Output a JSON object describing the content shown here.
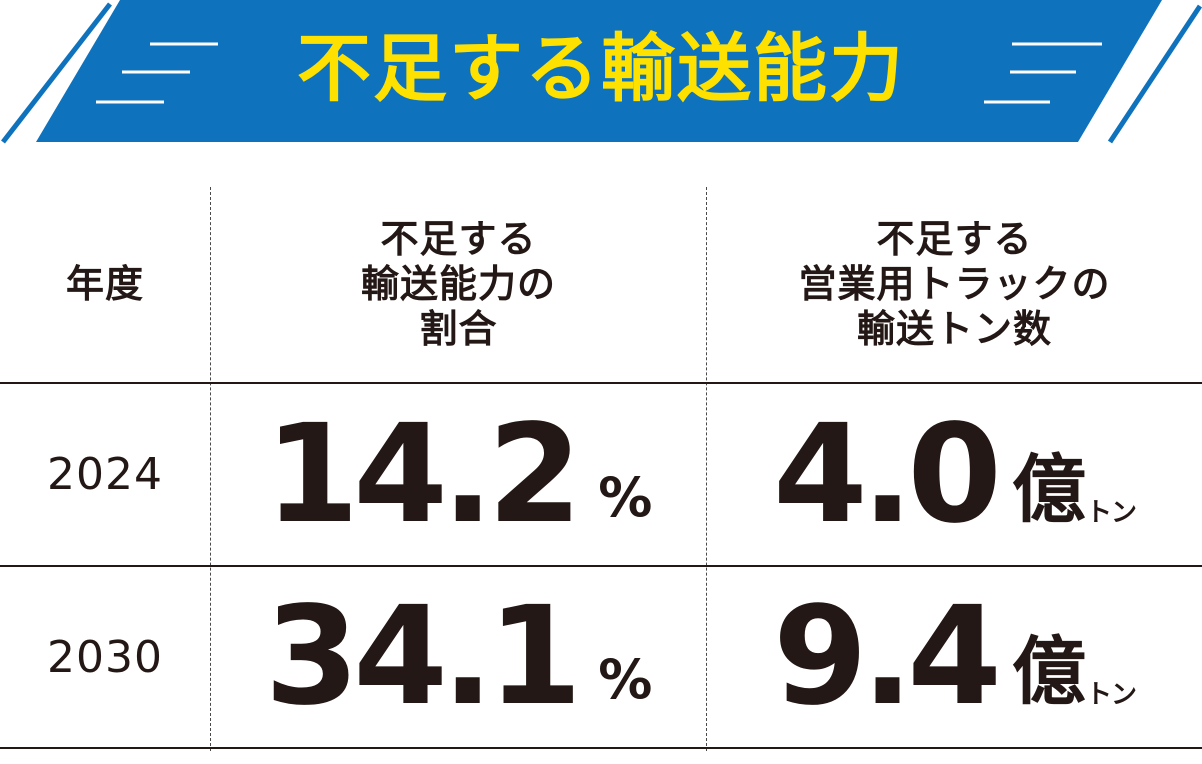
{
  "colors": {
    "banner_blue": "#0f72bd",
    "banner_title_yellow": "#ffe100",
    "text_dark": "#231815"
  },
  "banner": {
    "title": "不足する輸送能力"
  },
  "table": {
    "headers": {
      "year": "年度",
      "ratio": [
        "不足する",
        "輸送能力の",
        "割合"
      ],
      "tonnage": [
        "不足する",
        "営業用トラックの",
        "輸送トン数"
      ]
    },
    "rows": [
      {
        "year": "2024",
        "ratio_value": "14.2",
        "ratio_unit": "%",
        "tonnage_value": "4.0",
        "tonnage_unit": "億",
        "tonnage_subunit": "トン"
      },
      {
        "year": "2030",
        "ratio_value": "34.1",
        "ratio_unit": "%",
        "tonnage_value": "9.4",
        "tonnage_unit": "億",
        "tonnage_subunit": "トン"
      }
    ]
  }
}
